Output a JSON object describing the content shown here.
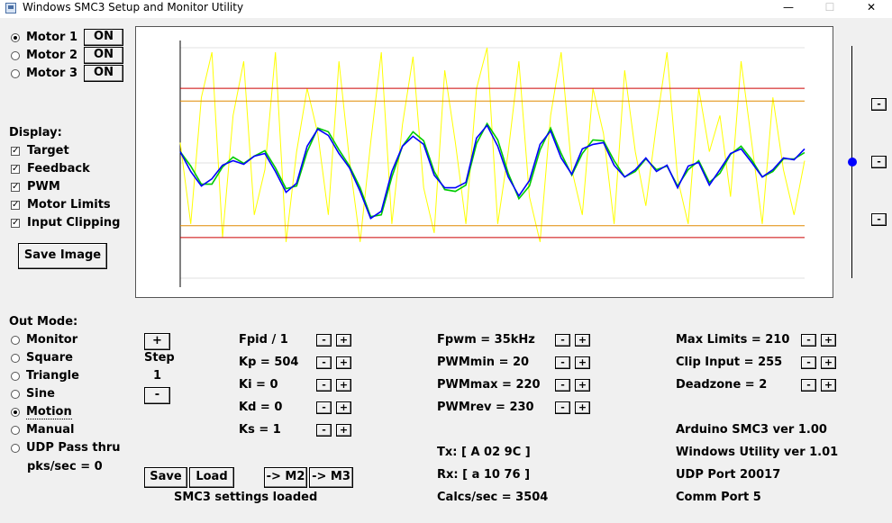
{
  "window": {
    "title": "Windows SMC3 Setup and Monitor Utility",
    "minimize": "—",
    "maximize": "☐",
    "close": "✕"
  },
  "motors": [
    {
      "label": "Motor 1",
      "selected": true,
      "button": "ON"
    },
    {
      "label": "Motor 2",
      "selected": false,
      "button": "ON"
    },
    {
      "label": "Motor 3",
      "selected": false,
      "button": "ON"
    }
  ],
  "display": {
    "heading": "Display:",
    "options": [
      {
        "label": "Target",
        "checked": true
      },
      {
        "label": "Feedback",
        "checked": true
      },
      {
        "label": "PWM",
        "checked": true
      },
      {
        "label": "Motor Limits",
        "checked": true
      },
      {
        "label": "Input Clipping",
        "checked": true
      }
    ],
    "save_image": "Save Image"
  },
  "out_mode": {
    "heading": "Out Mode:",
    "options": [
      {
        "label": "Monitor",
        "selected": false
      },
      {
        "label": "Square",
        "selected": false
      },
      {
        "label": "Triangle",
        "selected": false
      },
      {
        "label": "Sine",
        "selected": false
      },
      {
        "label": "Motion",
        "selected": true
      },
      {
        "label": "Manual",
        "selected": false
      },
      {
        "label": "UDP Pass thru",
        "selected": false
      }
    ],
    "pks": "pks/sec = 0"
  },
  "step": {
    "plus": "+",
    "label": "Step",
    "value": "1",
    "minus": "-"
  },
  "pid_params": [
    {
      "label": "Fpid / 1"
    },
    {
      "label": "Kp = 504"
    },
    {
      "label": "Ki = 0"
    },
    {
      "label": "Kd = 0"
    },
    {
      "label": "Ks = 1"
    }
  ],
  "pwm_params": [
    {
      "label": "Fpwm = 35kHz"
    },
    {
      "label": "PWMmin = 20"
    },
    {
      "label": "PWMmax = 220"
    },
    {
      "label": "PWMrev = 230"
    }
  ],
  "limit_params": [
    {
      "label": "Max Limits = 210"
    },
    {
      "label": "Clip Input = 255"
    },
    {
      "label": "Deadzone = 2"
    }
  ],
  "adj": {
    "minus": "-",
    "plus": "+"
  },
  "comms": {
    "tx": "Tx: [ A 02 9C ]",
    "rx": "Rx: [ a 10 76 ]",
    "calcs": "Calcs/sec = 3504"
  },
  "info": {
    "arduino": "Arduino SMC3 ver 1.00",
    "windows": "Windows Utility ver 1.01",
    "udp": "UDP Port 20017",
    "comm": "Comm Port 5"
  },
  "bottom_buttons": {
    "save": "Save",
    "load": "Load",
    "m2": "-> M2",
    "m3": "-> M3"
  },
  "status": "SMC3 settings loaded",
  "zoom_buttons": [
    "-",
    "-",
    "-"
  ],
  "slider": {
    "value_fraction": 0.5
  },
  "chart_data": {
    "type": "line",
    "title": "",
    "xlabel": "",
    "ylabel": "",
    "ylim": [
      0,
      255
    ],
    "limits": {
      "motor_limits": [
        210,
        45
      ],
      "input_clipping": [
        196,
        58
      ]
    },
    "series": [
      {
        "color": "#0000ff",
        "values": [
          140,
          118,
          102,
          110,
          125,
          130,
          126,
          135,
          138,
          118,
          95,
          105,
          146,
          165,
          158,
          138,
          122,
          96,
          66,
          74,
          118,
          146,
          157,
          148,
          114,
          100,
          100,
          106,
          155,
          169,
          146,
          112,
          91,
          108,
          148,
          163,
          133,
          115,
          143,
          148,
          150,
          125,
          112,
          120,
          133,
          118,
          125,
          100,
          124,
          128,
          103,
          120,
          138,
          143,
          128,
          112,
          120,
          133,
          131,
          143
        ]
      },
      {
        "color": "#00cc00",
        "values": [
          140,
          124,
          104,
          104,
          123,
          134,
          127,
          135,
          141,
          122,
          99,
          102,
          140,
          166,
          162,
          142,
          124,
          100,
          68,
          70,
          112,
          146,
          162,
          152,
          118,
          98,
          96,
          103,
          149,
          171,
          153,
          116,
          88,
          102,
          142,
          166,
          138,
          114,
          138,
          153,
          152,
          130,
          112,
          118,
          132,
          120,
          124,
          102,
          120,
          130,
          106,
          116,
          137,
          146,
          131,
          112,
          118,
          132,
          132,
          139
        ]
      },
      {
        "color": "#ffff00",
        "values": [
          150,
          60,
          200,
          250,
          45,
          180,
          240,
          70,
          120,
          250,
          40,
          140,
          210,
          160,
          70,
          240,
          130,
          40,
          150,
          250,
          60,
          170,
          245,
          100,
          50,
          230,
          150,
          60,
          210,
          255,
          60,
          140,
          240,
          90,
          40,
          180,
          250,
          120,
          70,
          210,
          160,
          60,
          230,
          140,
          80,
          170,
          250,
          110,
          60,
          210,
          140,
          180,
          90,
          240,
          150,
          60,
          200,
          120,
          70,
          130
        ]
      }
    ]
  }
}
